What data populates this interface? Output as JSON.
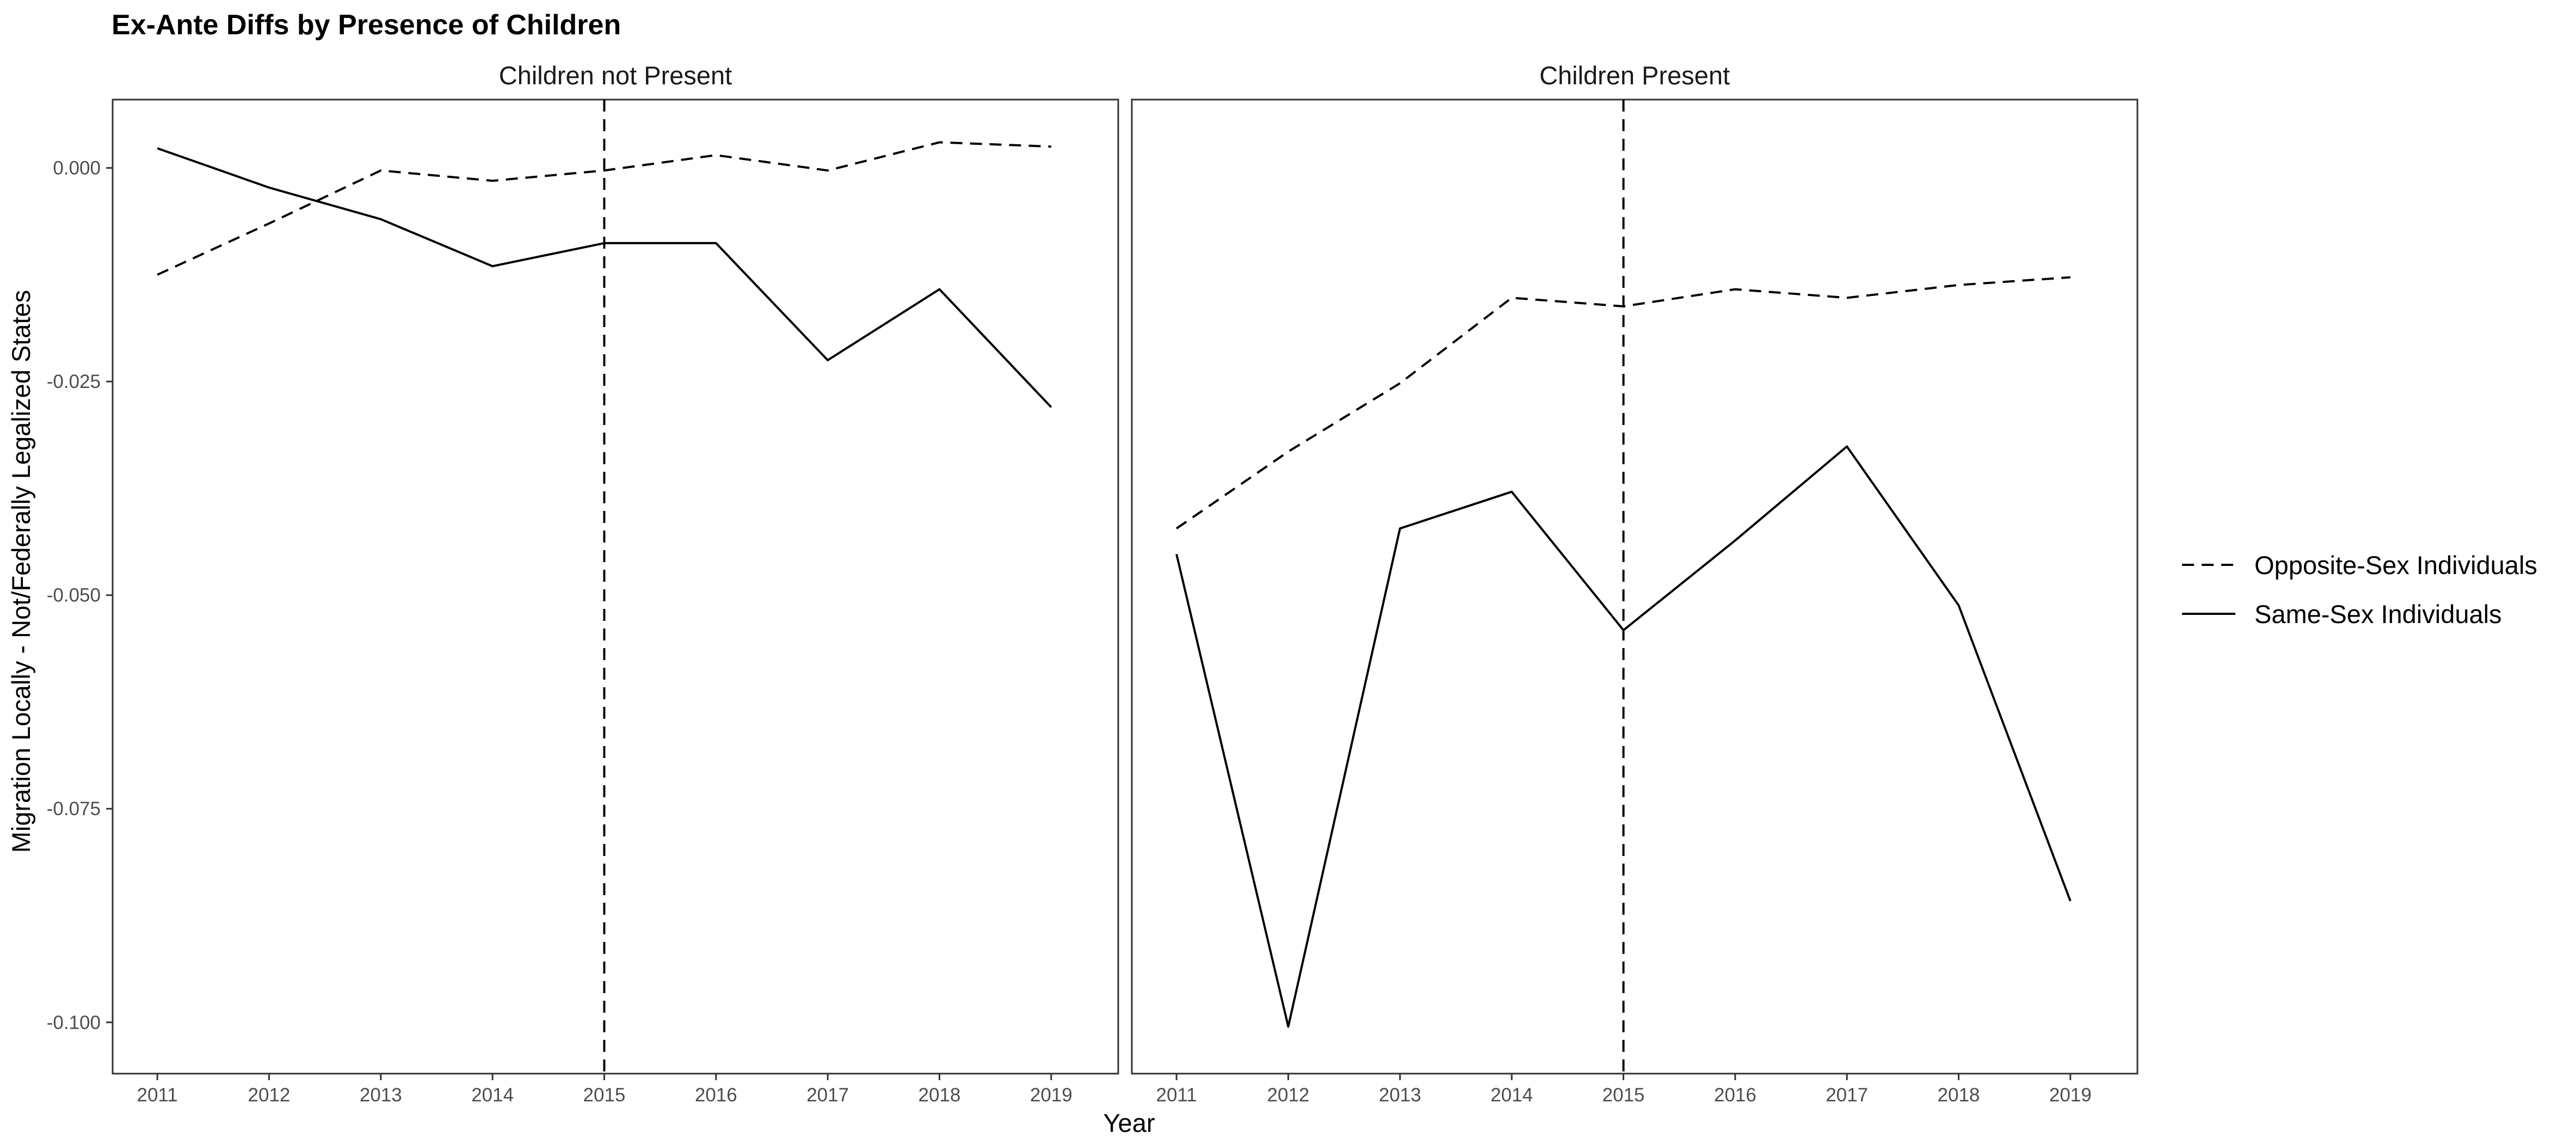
{
  "chart_data": {
    "type": "line",
    "title": "Ex-Ante Diffs by Presence of Children",
    "xlabel": "Year",
    "ylabel": "Migration Locally - Not/Federally Legalized States",
    "x": [
      2011,
      2012,
      2013,
      2014,
      2015,
      2016,
      2017,
      2018,
      2019
    ],
    "xlim": [
      2010.6,
      2019.6
    ],
    "ylim": [
      -0.106,
      0.008
    ],
    "y_ticks": [
      0.0,
      -0.025,
      -0.05,
      -0.075,
      -0.1
    ],
    "y_tick_labels": [
      "0.000",
      "-0.025",
      "-0.050",
      "-0.075",
      "-0.100"
    ],
    "reference_line_x": 2015,
    "grid": false,
    "legend_position": "right",
    "legend": [
      {
        "label": "Opposite-Sex Individuals",
        "style": "dashed"
      },
      {
        "label": "Same-Sex Individuals",
        "style": "solid"
      }
    ],
    "panels": [
      {
        "title": "Children not Present",
        "series": [
          {
            "name": "Opposite-Sex Individuals",
            "style": "dashed",
            "values": [
              -0.0125,
              -0.0065,
              -0.0003,
              -0.0015,
              -0.0003,
              0.0015,
              -0.0003,
              0.003,
              0.0025
            ]
          },
          {
            "name": "Same-Sex Individuals",
            "style": "solid",
            "values": [
              0.0023,
              -0.0023,
              -0.006,
              -0.0115,
              -0.0088,
              -0.0088,
              -0.0225,
              -0.0142,
              -0.028
            ]
          }
        ]
      },
      {
        "title": "Children Present",
        "series": [
          {
            "name": "Opposite-Sex Individuals",
            "style": "dashed",
            "values": [
              -0.0422,
              -0.0332,
              -0.0252,
              -0.0152,
              -0.0162,
              -0.0142,
              -0.0152,
              -0.0137,
              -0.0128
            ]
          },
          {
            "name": "Same-Sex Individuals",
            "style": "solid",
            "values": [
              -0.0452,
              -0.1005,
              -0.0422,
              -0.0379,
              -0.0541,
              -0.0436,
              -0.0326,
              -0.0512,
              -0.0858
            ]
          }
        ]
      }
    ]
  },
  "colors": {
    "line": "#000000",
    "panel_border": "#333333",
    "tick_text": "#4d4d4d",
    "background": "#ffffff"
  }
}
